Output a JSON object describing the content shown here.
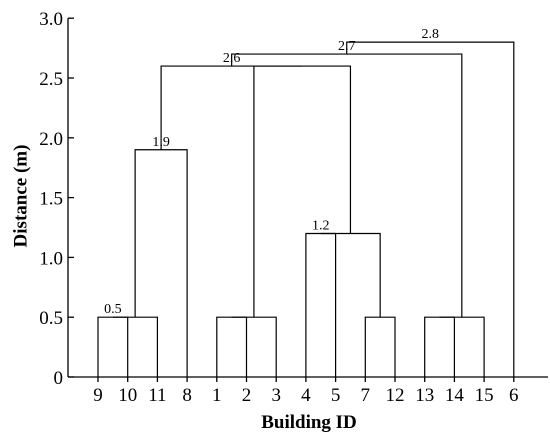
{
  "chart_data": {
    "type": "dendrogram",
    "xlabel": "Building ID",
    "ylabel": "Distance (m)",
    "ylim": [
      0,
      3.0
    ],
    "yticks": [
      "0",
      "0.5",
      "1.0",
      "1.5",
      "2.0",
      "2.5",
      "3.0"
    ],
    "leaves": [
      "9",
      "10",
      "11",
      "8",
      "1",
      "2",
      "3",
      "4",
      "5",
      "7",
      "12",
      "13",
      "14",
      "15",
      "6"
    ],
    "merges": [
      {
        "id": "m1",
        "left": "9",
        "right": "10",
        "height": 0.5
      },
      {
        "id": "m2",
        "left": "m1",
        "right": "11",
        "height": 0.5
      },
      {
        "id": "m3",
        "left": "m2",
        "right": "8",
        "height": 1.9
      },
      {
        "id": "m4",
        "left": "1",
        "right": "2",
        "height": 0.5
      },
      {
        "id": "m5",
        "left": "m4",
        "right": "3",
        "height": 0.5
      },
      {
        "id": "m6",
        "left": "7",
        "right": "12",
        "height": 0.5
      },
      {
        "id": "m7",
        "left": "4",
        "right": "5",
        "height": 1.2
      },
      {
        "id": "m8",
        "left": "m7",
        "right": "m6",
        "height": 1.2
      },
      {
        "id": "m9",
        "left": "m5",
        "right": "m8",
        "height": 2.6
      },
      {
        "id": "m10",
        "left": "m3",
        "right": "m9",
        "height": 2.6
      },
      {
        "id": "m11",
        "left": "13",
        "right": "14",
        "height": 0.5
      },
      {
        "id": "m12",
        "left": "m11",
        "right": "15",
        "height": 0.5
      },
      {
        "id": "m13",
        "left": "m10",
        "right": "m12",
        "height": 2.7
      },
      {
        "id": "m14",
        "left": "m13",
        "right": "6",
        "height": 2.8
      }
    ],
    "annotations": [
      {
        "text": "0.5",
        "merge": "m1"
      },
      {
        "text": "1.9",
        "merge": "m3"
      },
      {
        "text": "1.2",
        "merge": "m7"
      },
      {
        "text": "2.6",
        "merge": "m10"
      },
      {
        "text": "2.7",
        "merge": "m13"
      },
      {
        "text": "2.8",
        "merge": "m14"
      }
    ]
  }
}
